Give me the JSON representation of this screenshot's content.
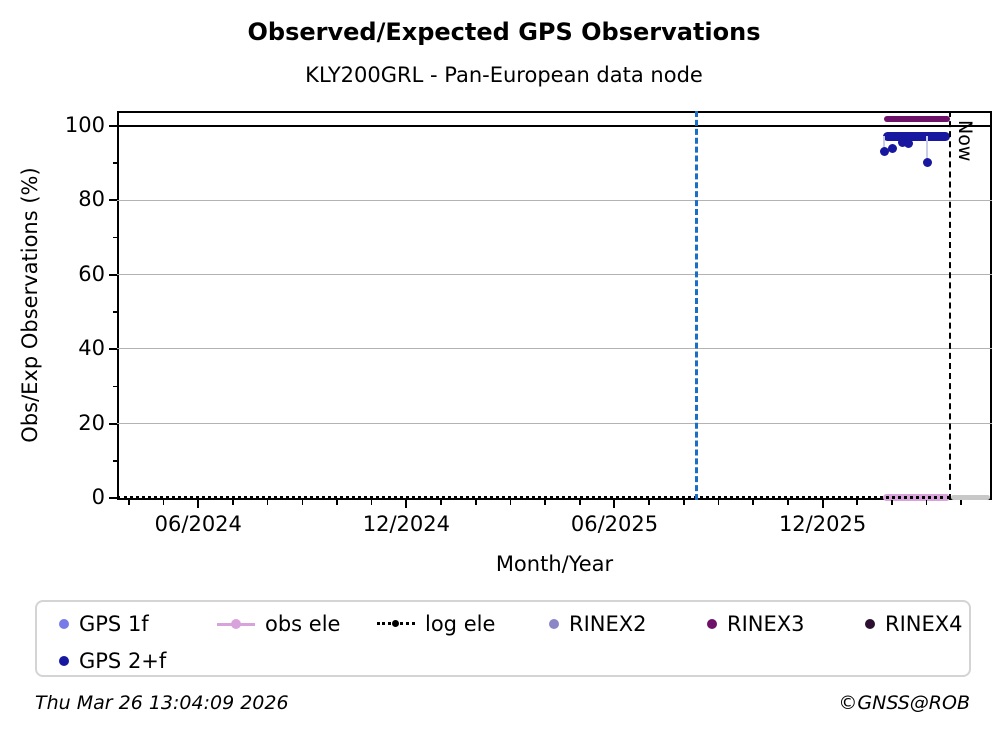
{
  "title": "Observed/Expected GPS Observations",
  "subtitle": "KLY200GRL - Pan-European data node",
  "footer": {
    "timestamp": "Thu Mar 26 13:04:09 2026",
    "credit": "©GNSS@ROB"
  },
  "chart_data": {
    "type": "scatter",
    "title": "Observed/Expected GPS Observations",
    "subtitle": "KLY200GRL - Pan-European data node",
    "xlabel": "Month/Year",
    "ylabel": "Obs/Exp Observations (%)",
    "xlim_decimal_year": [
      2024.2214,
      2026.3238
    ],
    "ylim": [
      -0.54,
      104.05
    ],
    "grid": "horizontal-only",
    "grid_color": "#b3b3b3",
    "yticks_major": [
      0,
      20,
      40,
      60,
      80,
      100
    ],
    "yticks_minor": [
      10,
      30,
      50,
      70,
      90
    ],
    "xticks_major": [
      {
        "t": 2024.4167,
        "label": "06/2024"
      },
      {
        "t": 2024.9167,
        "label": "12/2024"
      },
      {
        "t": 2025.4167,
        "label": "06/2025"
      },
      {
        "t": 2025.9167,
        "label": "12/2025"
      }
    ],
    "xticks_minor_start": 2024.25,
    "xticks_minor_step_years": 0.083333,
    "reference_lines": {
      "solid_black_y": 100,
      "dotted_zero_y": 0,
      "gap_vline_t": 2025.614,
      "gap_vline_color": "#1a6fc4",
      "now_vline_t": 2026.2235,
      "now_label": "Now"
    },
    "series": [
      {
        "name": "GPS 1f",
        "color": "#767be8",
        "marker": "dot",
        "points": []
      },
      {
        "name": "GPS 2+f",
        "color": "#1717a0",
        "marker": "dot",
        "band": {
          "t0": 2026.063,
          "t1": 2026.222,
          "y": 97.3,
          "thickness_px": 9
        },
        "points": [
          [
            2026.065,
            93.1
          ],
          [
            2026.085,
            93.9
          ],
          [
            2026.108,
            95.5
          ],
          [
            2026.122,
            95.2
          ],
          [
            2026.168,
            90.3
          ]
        ],
        "stems": [
          {
            "t": 2026.065,
            "y0": 93.1,
            "y1": 97.3
          },
          {
            "t": 2026.168,
            "y0": 90.3,
            "y1": 97.3
          }
        ],
        "stem_color": "#c9cdea"
      },
      {
        "name": "obs ele",
        "color": "#d8a3da",
        "marker": "line",
        "segment": {
          "t0": 2026.063,
          "t1": 2026.222,
          "y": 0,
          "thickness_px": 7
        }
      },
      {
        "name": "obs ele future",
        "color": "#c8c8c8",
        "marker": "line",
        "segment": {
          "t0": 2026.225,
          "t1": 2026.318,
          "y": 0,
          "thickness_px": 5
        }
      },
      {
        "name": "log ele",
        "color": "#000000",
        "marker": "dotted-line",
        "dotted_span": {
          "t0": 2024.2214,
          "t1": 2026.2235,
          "y": 0
        }
      },
      {
        "name": "RINEX2",
        "color": "#8c85c6",
        "marker": "dot",
        "points": []
      },
      {
        "name": "RINEX3",
        "color": "#6e1168",
        "marker": "line",
        "segment": {
          "t0": 2026.064,
          "t1": 2026.222,
          "y": 102,
          "thickness_px": 6
        }
      },
      {
        "name": "RINEX4",
        "color": "#2c1030",
        "marker": "dot",
        "points": []
      }
    ]
  },
  "legend": {
    "items": [
      {
        "label": "GPS 1f",
        "color": "#767be8",
        "marker": "dot"
      },
      {
        "label": "obs ele",
        "color": "#d8a3da",
        "marker": "line-dot"
      },
      {
        "label": "log ele",
        "color": "#000000",
        "marker": "dotted-line-dot"
      },
      {
        "label": "RINEX2",
        "color": "#8c85c6",
        "marker": "dot"
      },
      {
        "label": "RINEX3",
        "color": "#6e1168",
        "marker": "dot"
      },
      {
        "label": "RINEX4",
        "color": "#2c1030",
        "marker": "dot"
      },
      {
        "label": "GPS 2+f",
        "color": "#1717a0",
        "marker": "dot"
      }
    ]
  }
}
